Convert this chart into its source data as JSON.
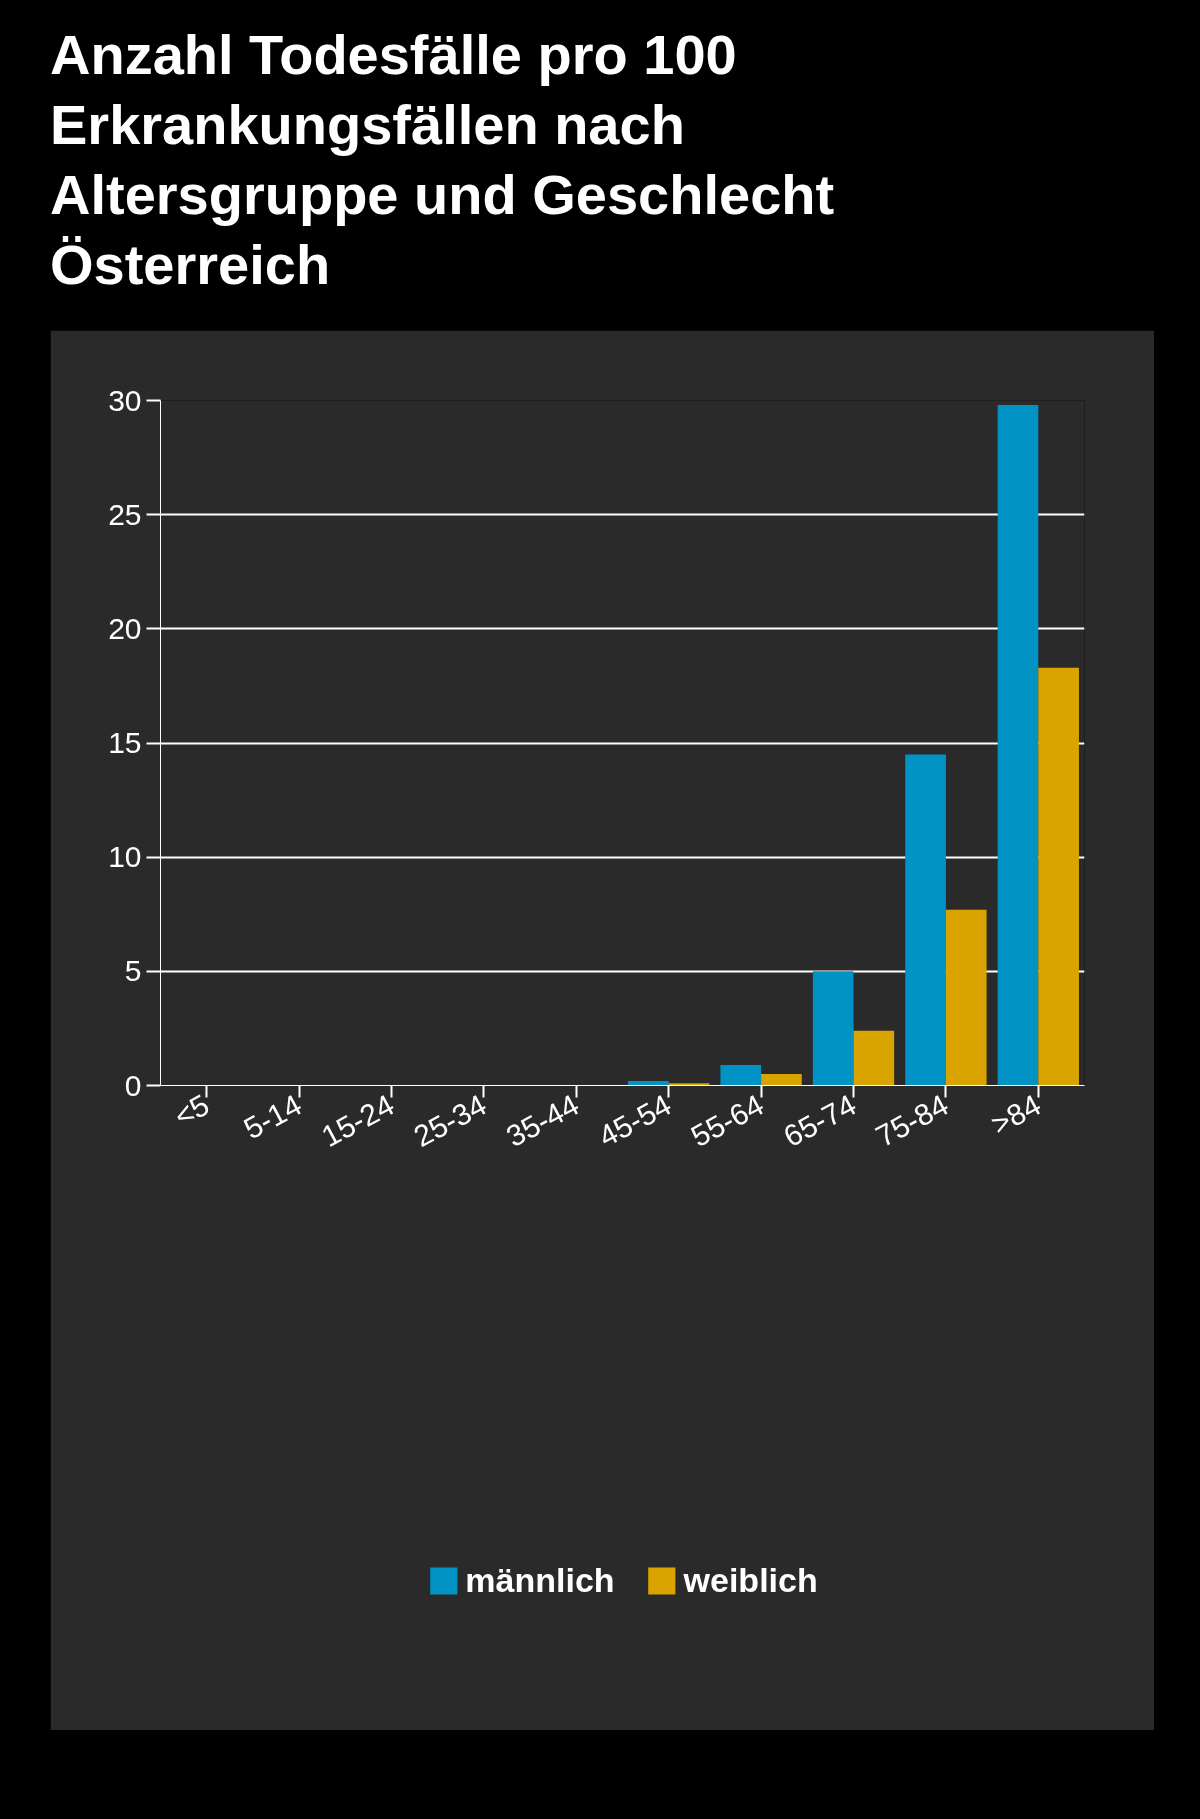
{
  "chart_data": {
    "type": "bar",
    "title": "Anzahl Todesfälle pro 100 Erkrankungsfällen nach Altersgruppe und Geschlecht Österreich",
    "categories": [
      "<5",
      "5-14",
      "15-24",
      "25-34",
      "35-44",
      "45-54",
      "55-64",
      "65-74",
      "75-84",
      ">84"
    ],
    "series": [
      {
        "name": "männlich",
        "color": "#0093c4",
        "values": [
          0,
          0,
          0,
          0,
          0,
          0.2,
          0.9,
          5.0,
          14.5,
          29.8
        ]
      },
      {
        "name": "weiblich",
        "color": "#d9a400",
        "values": [
          0,
          0,
          0,
          0,
          0,
          0.1,
          0.5,
          2.4,
          7.7,
          18.3
        ]
      }
    ],
    "ylim": [
      0,
      30
    ],
    "yticks": [
      0,
      5,
      10,
      15,
      20,
      25,
      30
    ],
    "grid": "y",
    "legend": "bottom"
  }
}
